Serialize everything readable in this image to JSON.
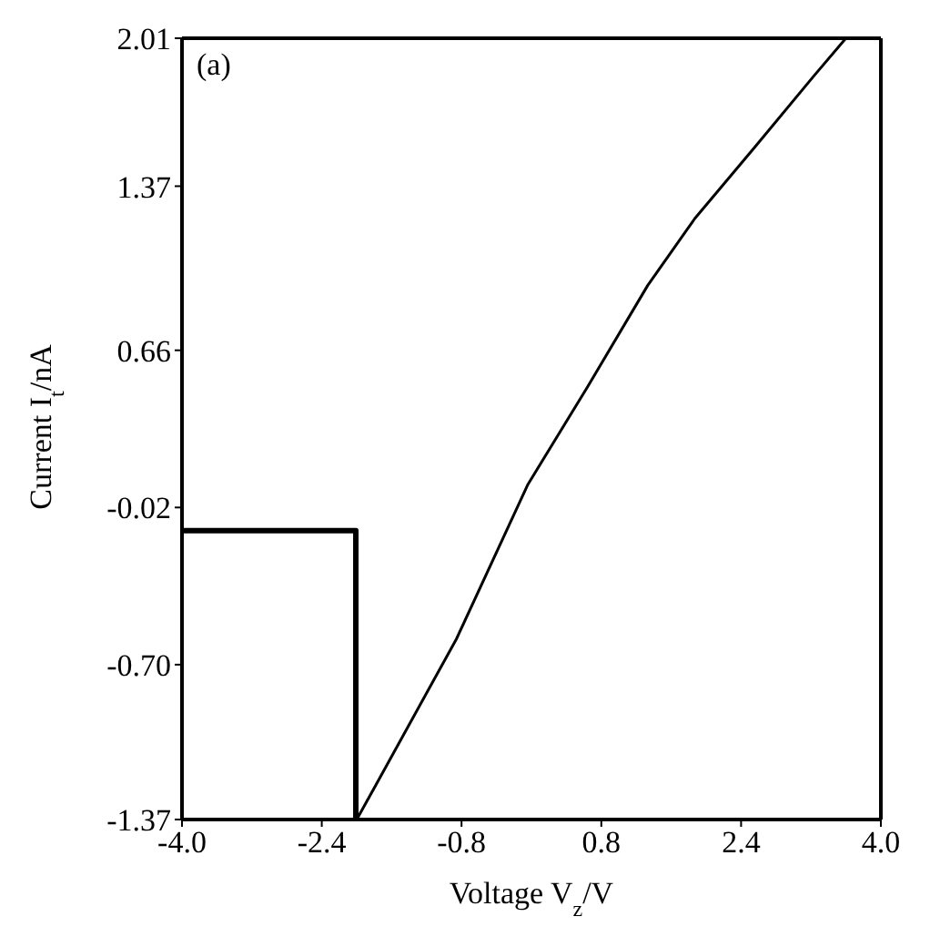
{
  "chart_data": {
    "type": "line",
    "xlabel": "Voltage V$_{z}$/V",
    "ylabel": "Current I$_{t}$/nA",
    "annotations": [
      "(a)"
    ],
    "xlim": [
      -4,
      4
    ],
    "xticks": [
      {
        "value": -4,
        "label": "-4.0"
      },
      {
        "value": -2.4,
        "label": "-2.4"
      },
      {
        "value": -0.8,
        "label": "-0.8"
      },
      {
        "value": 0.8,
        "label": "0.8"
      },
      {
        "value": 2.4,
        "label": "2.4"
      },
      {
        "value": 4,
        "label": "4.0"
      }
    ],
    "ylim": [
      -1.37,
      2.01
    ],
    "yticks": [
      -1.37,
      {
        "value": -0.7,
        "label": "-0.70"
      },
      -0.02,
      0.66,
      1.37,
      2.01
    ],
    "legend": false,
    "marker": "none",
    "line_style": "solid",
    "series": [
      {
        "type": "step",
        "color": "#000000",
        "x": [
          -4,
          -2.01
        ],
        "values": [
          -0.12,
          -1.37
        ]
      },
      {
        "type": "line",
        "color": "#000000",
        "x": [
          -2.0,
          -1.78,
          -0.86,
          -0.04,
          0.64,
          1.33,
          1.87,
          2.56,
          3.24,
          3.6
        ],
        "values": [
          -1.37,
          -1.22,
          -0.59,
          0.08,
          0.5,
          0.94,
          1.23,
          1.54,
          1.85,
          2.01
        ]
      }
    ]
  }
}
